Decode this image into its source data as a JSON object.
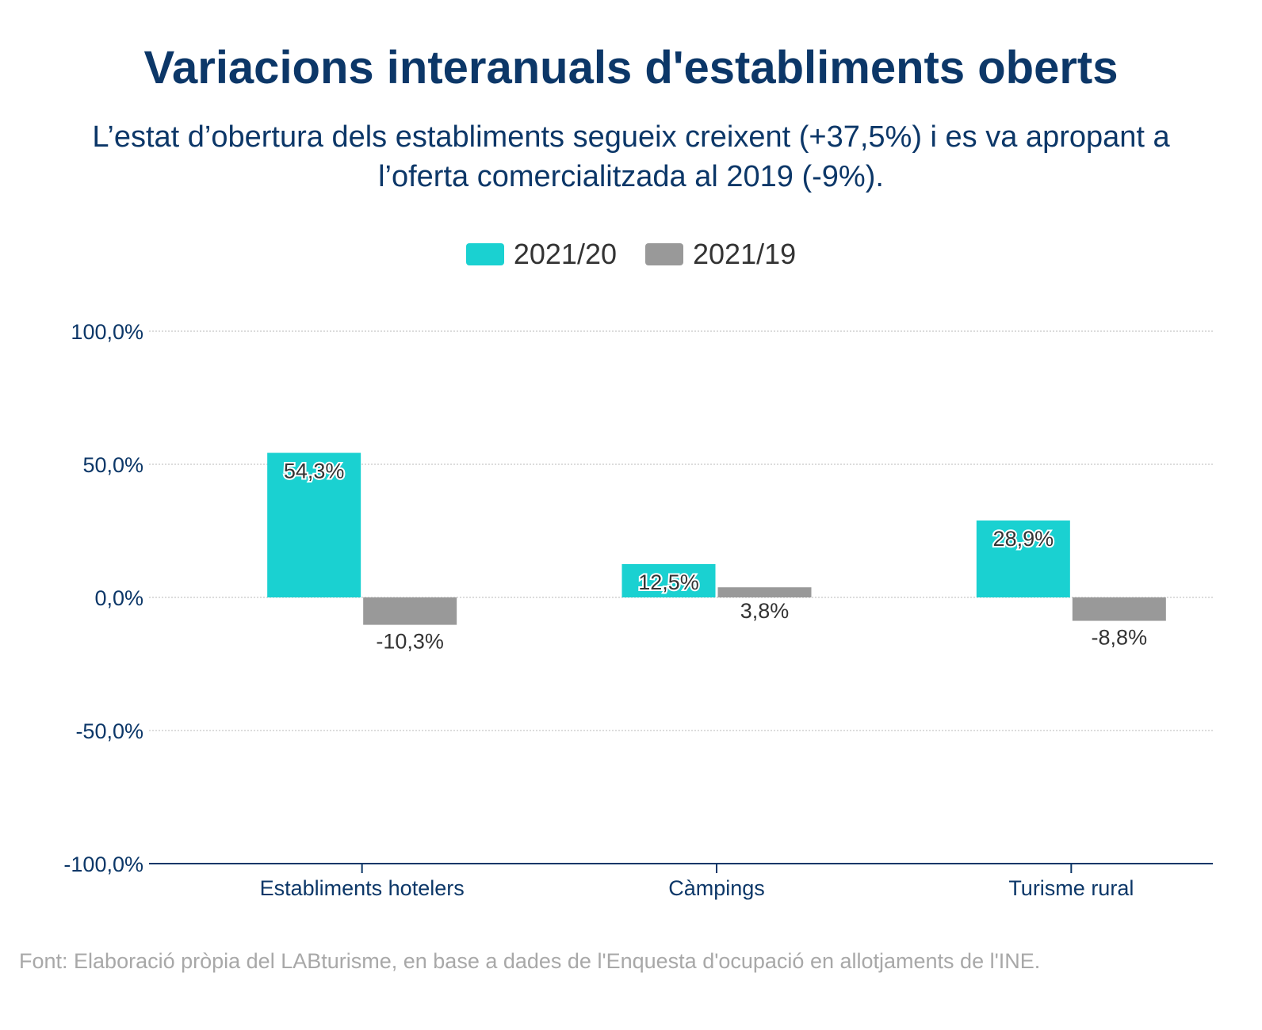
{
  "title": "Variacions interanuals d'establiments oberts",
  "subtitle": "L’estat d’obertura dels establiments segueix creixent (+37,5%) i es va apropant a l’oferta comercialitzada al 2019 (-9%).",
  "source": "Font: Elaboració pròpia del LABturisme, en base a dades de l'Enquesta d'ocupació en allotjaments de l'INE.",
  "colors": {
    "series1": "#1ad1d1",
    "series2": "#999999",
    "axis": "#0c3768",
    "grid": "#c8c8c8"
  },
  "chart_data": {
    "type": "bar",
    "title": "Variacions interanuals d'establiments oberts",
    "categories": [
      "Establiments hotelers",
      "Càmpings",
      "Turisme rural"
    ],
    "series": [
      {
        "name": "2021/20",
        "values": [
          54.3,
          12.5,
          28.9
        ],
        "labels": [
          "54,3%",
          "12,5%",
          "28,9%"
        ]
      },
      {
        "name": "2021/19",
        "values": [
          -10.3,
          3.8,
          -8.8
        ],
        "labels": [
          "-10,3%",
          "3,8%",
          "-8,8%"
        ]
      }
    ],
    "ylim": [
      -100,
      100
    ],
    "yticks": [
      100,
      50,
      0,
      -50,
      -100
    ],
    "ytick_labels": [
      "100,0%",
      "50,0%",
      "0,0%",
      "-50,0%",
      "-100,0%"
    ],
    "grid": true,
    "legend": "top-center"
  }
}
